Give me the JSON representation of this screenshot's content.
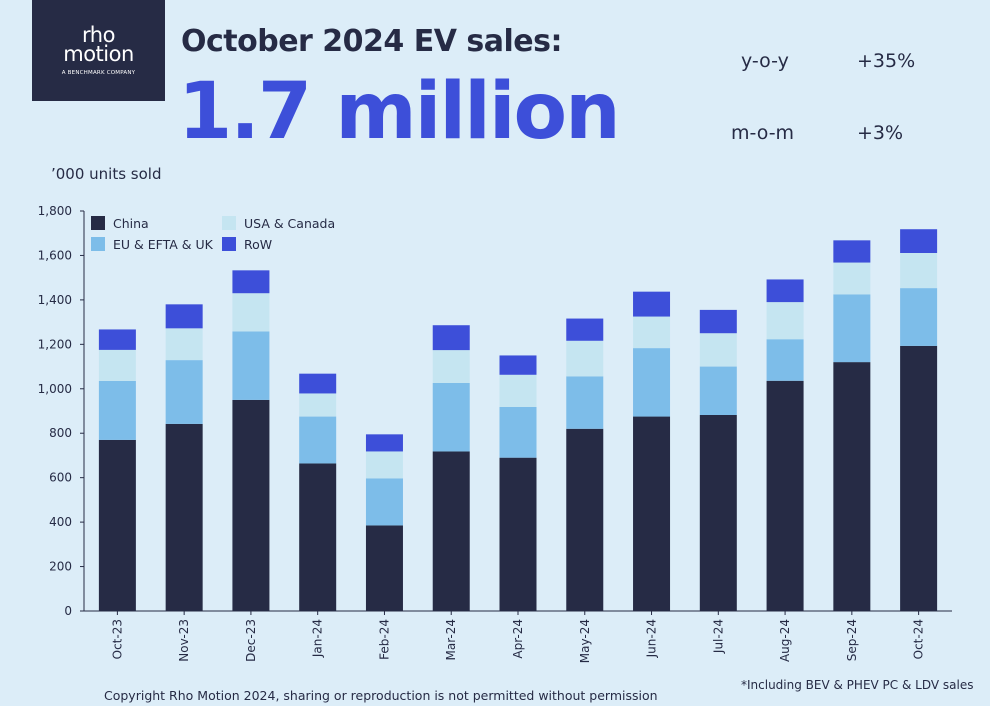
{
  "logo": {
    "line1": "rho",
    "line2": "motion",
    "sub": "A BENCHMARK COMPANY"
  },
  "headline": "October 2024 EV sales:",
  "big_number": "1.7 million",
  "stats": {
    "yoy_label": "y-o-y",
    "yoy_value": "+35%",
    "mom_label": "m-o-m",
    "mom_value": "+3%"
  },
  "units_label": "’000 units sold",
  "footer": {
    "copyright": "Copyright Rho Motion 2024, sharing or reproduction is not permitted without permission",
    "note": "*Including BEV & PHEV PC & LDV sales"
  },
  "colors": {
    "China": "#262b45",
    "EU & EFTA & UK": "#7dbde9",
    "USA & Canada": "#c5e5f1",
    "RoW": "#3d4fd9",
    "background": "#dcedf8"
  },
  "chart_data": {
    "type": "bar",
    "stacked": true,
    "categories": [
      "Oct-23",
      "Nov-23",
      "Dec-23",
      "Jan-24",
      "Feb-24",
      "Mar-24",
      "Apr-24",
      "May-24",
      "Jun-24",
      "Jul-24",
      "Aug-24",
      "Sep-24",
      "Oct-24"
    ],
    "series": [
      {
        "name": "China",
        "values": [
          770,
          842,
          950,
          664,
          385,
          718,
          690,
          820,
          875,
          882,
          1036,
          1120,
          1193
        ]
      },
      {
        "name": "EU & EFTA & UK",
        "values": [
          265,
          287,
          308,
          211,
          212,
          308,
          228,
          236,
          308,
          218,
          187,
          305,
          260
        ]
      },
      {
        "name": "USA & Canada",
        "values": [
          140,
          143,
          172,
          104,
          121,
          148,
          145,
          160,
          142,
          150,
          167,
          143,
          158
        ]
      },
      {
        "name": "RoW",
        "values": [
          92,
          108,
          103,
          89,
          77,
          112,
          87,
          100,
          112,
          105,
          102,
          100,
          107
        ]
      }
    ],
    "legend_order": [
      "China",
      "USA & Canada",
      "EU & EFTA & UK",
      "RoW"
    ],
    "ylim": [
      0,
      1800
    ],
    "yticks": [
      "0",
      "200",
      "400",
      "600",
      "800",
      "1,000",
      "1,200",
      "1,400",
      "1,600",
      "1,800"
    ],
    "ytick_values": [
      0,
      200,
      400,
      600,
      800,
      1000,
      1200,
      1400,
      1600,
      1800
    ],
    "legend_position": "top-left",
    "grid": false
  }
}
